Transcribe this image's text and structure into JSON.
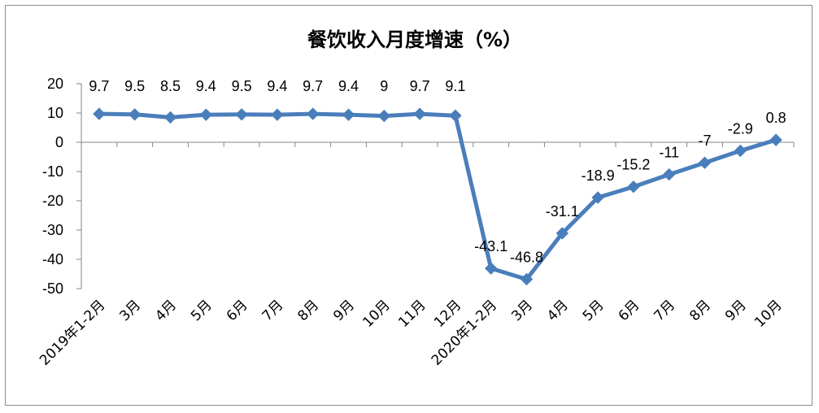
{
  "chart_data": {
    "type": "line",
    "title": "餐饮收入月度增速（%）",
    "xlabel": "",
    "ylabel": "",
    "categories": [
      "2019年1-2月",
      "3月",
      "4月",
      "5月",
      "6月",
      "7月",
      "8月",
      "9月",
      "10月",
      "11月",
      "12月",
      "2020年1-2月",
      "3月",
      "4月",
      "5月",
      "6月",
      "7月",
      "8月",
      "9月",
      "10月"
    ],
    "series": [
      {
        "values": [
          9.7,
          9.5,
          8.5,
          9.4,
          9.5,
          9.4,
          9.7,
          9.4,
          9,
          9.7,
          9.1,
          -43.1,
          -46.8,
          -31.1,
          -18.9,
          -15.2,
          -11,
          -7,
          -2.9,
          0.8
        ]
      }
    ],
    "data_labels": [
      "9.7",
      "9.5",
      "8.5",
      "9.4",
      "9.5",
      "9.4",
      "9.7",
      "9.4",
      "9",
      "9.7",
      "9.1",
      "-43.1",
      "-46.8",
      "-31.1",
      "-18.9",
      "-15.2",
      "-11",
      "-7",
      "-2.9",
      "0.8"
    ],
    "ylim": [
      -50,
      20
    ],
    "yticks": [
      20,
      10,
      0,
      -10,
      -20,
      -30,
      -40,
      -50
    ],
    "ytick_labels": [
      "20",
      "10",
      "0",
      "-10",
      "-20",
      "-30",
      "-40",
      "-50"
    ],
    "grid": false,
    "legend": "none",
    "marker": "diamond",
    "colors": {
      "line": "#4a7ebb",
      "axis": "#868686",
      "border": "#8c8c8c"
    }
  }
}
